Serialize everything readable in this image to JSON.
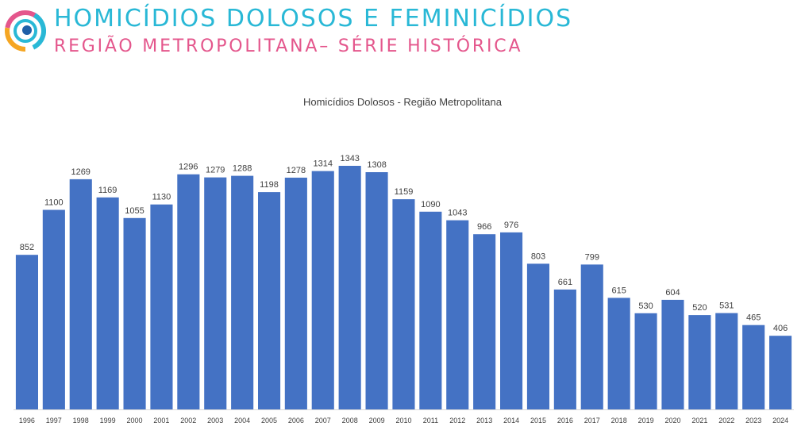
{
  "header": {
    "title": "HOMICÍDIOS DOLOSOS E FEMINICÍDIOS",
    "subtitle": "REGIÃO METROPOLITANA– SÉRIE HISTÓRICA",
    "logo_icon": "circular-swirl-logo-icon",
    "title_color": "#29b8d6",
    "subtitle_color": "#e4568c"
  },
  "chart_data": {
    "type": "bar",
    "title": "Homicídios Dolosos - Região Metropolitana",
    "xlabel": "",
    "ylabel": "",
    "categories": [
      "1996",
      "1997",
      "1998",
      "1999",
      "2000",
      "2001",
      "2002",
      "2003",
      "2004",
      "2005",
      "2006",
      "2007",
      "2008",
      "2009",
      "2010",
      "2011",
      "2012",
      "2013",
      "2014",
      "2015",
      "2016",
      "2017",
      "2018",
      "2019",
      "2020",
      "2021",
      "2022",
      "2023",
      "2024"
    ],
    "values": [
      852,
      1100,
      1269,
      1169,
      1055,
      1130,
      1296,
      1279,
      1288,
      1198,
      1278,
      1314,
      1343,
      1308,
      1159,
      1090,
      1043,
      966,
      976,
      803,
      661,
      799,
      615,
      530,
      604,
      520,
      531,
      465,
      406
    ],
    "ylim": [
      0,
      1343
    ],
    "grid": false,
    "bar_color": "#4472c4",
    "data_labels": true
  }
}
